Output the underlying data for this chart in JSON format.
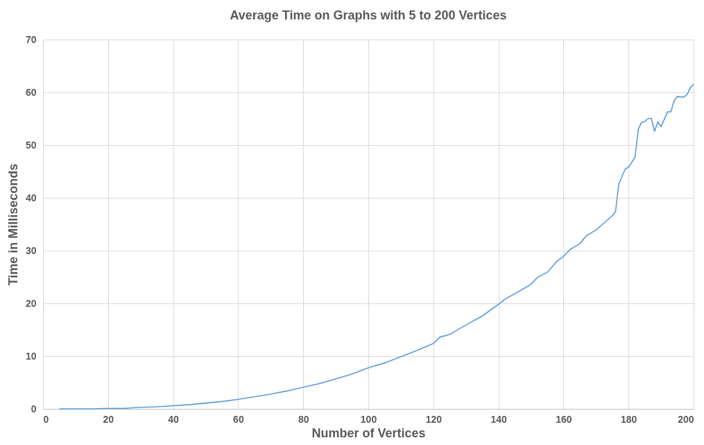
{
  "chart_data": {
    "type": "line",
    "title": "Average Time on Graphs with 5 to 200 Vertices",
    "xlabel": "Number of Vertices",
    "ylabel": "Time in Milliseconds",
    "x": [
      5,
      10,
      15,
      20,
      25,
      30,
      35,
      40,
      45,
      50,
      55,
      60,
      65,
      70,
      75,
      80,
      85,
      90,
      95,
      100,
      105,
      110,
      115,
      120,
      122,
      125,
      130,
      135,
      140,
      142,
      145,
      150,
      152,
      155,
      158,
      160,
      162,
      165,
      167,
      170,
      172,
      175,
      176,
      177,
      179,
      180,
      182,
      183,
      184,
      185,
      186,
      187,
      188,
      189,
      190,
      192,
      193,
      194,
      195,
      197,
      198,
      199,
      200
    ],
    "series": [
      {
        "color": "#5b9bd5",
        "values": [
          0,
          0,
          0,
          0.1,
          0.1,
          0.3,
          0.4,
          0.6,
          0.8,
          1.1,
          1.4,
          1.8,
          2.3,
          2.8,
          3.4,
          4.1,
          4.8,
          5.7,
          6.6,
          7.8,
          8.7,
          9.9,
          11.1,
          12.4,
          13.6,
          14.1,
          15.9,
          17.6,
          19.8,
          20.8,
          21.8,
          23.6,
          24.9,
          25.9,
          28.0,
          28.9,
          30.2,
          31.3,
          32.8,
          33.9,
          35.0,
          36.6,
          37.4,
          42.6,
          45.5,
          45.8,
          47.7,
          53.0,
          54.3,
          54.5,
          55.0,
          55.1,
          52.6,
          54.4,
          53.5,
          56.3,
          56.3,
          58.4,
          59.2,
          59.1,
          59.6,
          60.9,
          61.5
        ]
      }
    ],
    "xlim": [
      0,
      200
    ],
    "xticks": [
      0,
      20,
      40,
      60,
      80,
      100,
      120,
      140,
      160,
      180,
      200
    ],
    "ylim": [
      0,
      70
    ],
    "yticks": [
      0,
      10,
      20,
      30,
      40,
      50,
      60,
      70
    ],
    "grid": true,
    "marker": "none",
    "line_style": "solid",
    "legend": false
  }
}
